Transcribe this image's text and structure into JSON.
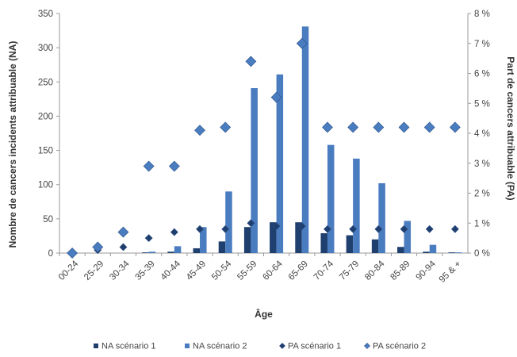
{
  "chart_data": {
    "type": "bar",
    "categories": [
      "00-24",
      "25-29",
      "30-34",
      "35-39",
      "40-44",
      "45-49",
      "50-54",
      "55-59",
      "60-64",
      "65-69",
      "70-74",
      "75-79",
      "80-84",
      "85-89",
      "90-94",
      "95 & +"
    ],
    "series": [
      {
        "name": "NA scénario 1",
        "kind": "bar",
        "axis": "left",
        "color": "#1f3f6e",
        "values": [
          0,
          0,
          0,
          1,
          2,
          7,
          17,
          38,
          45,
          45,
          29,
          26,
          20,
          9,
          2,
          1
        ]
      },
      {
        "name": "NA scénario 2",
        "kind": "bar",
        "axis": "left",
        "color": "#4a7cc0",
        "values": [
          0,
          0,
          0,
          2,
          10,
          38,
          90,
          241,
          261,
          331,
          158,
          138,
          102,
          47,
          12,
          1
        ]
      },
      {
        "name": "PA scénario 1",
        "kind": "marker",
        "axis": "right",
        "color": "#1f3f6e",
        "values": [
          0,
          0.1,
          0.2,
          0.5,
          0.7,
          0.8,
          0.8,
          1.0,
          0.9,
          0.9,
          0.8,
          0.8,
          0.8,
          0.8,
          0.8,
          0.8
        ]
      },
      {
        "name": "PA scénario 2",
        "kind": "marker",
        "axis": "right",
        "color": "#4a7cc0",
        "values": [
          0,
          0.2,
          0.7,
          2.9,
          2.9,
          4.1,
          4.2,
          6.4,
          5.2,
          7.0,
          4.2,
          4.2,
          4.2,
          4.2,
          4.2,
          4.2
        ]
      }
    ],
    "ylim_left": [
      0,
      350
    ],
    "yticks_left": [
      0,
      50,
      100,
      150,
      200,
      250,
      300,
      350
    ],
    "ylim_right": [
      0,
      8
    ],
    "yticks_right": [
      "0 %",
      "1 %",
      "2 %",
      "3 %",
      "4 %",
      "5 %",
      "6 %",
      "7 %",
      "8 %"
    ],
    "xlabel": "Âge",
    "ylabel_left": "Nombre de cancers incidents attribuable (NA)",
    "ylabel_right": "Part de cancers attribuable (PA)",
    "grid": false,
    "legend_position": "bottom"
  }
}
